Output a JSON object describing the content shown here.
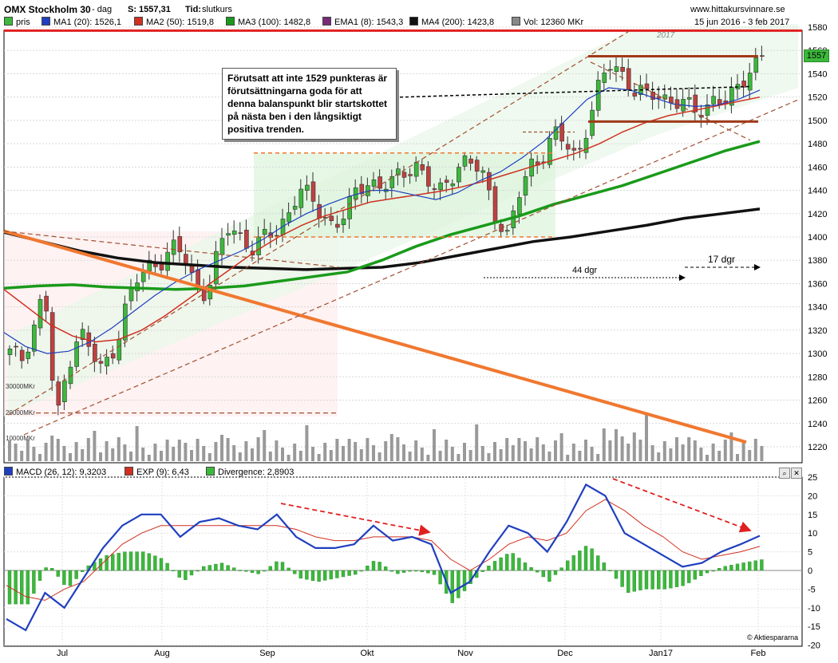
{
  "header": {
    "instrument": "OMX Stockholm 30",
    "period": "- dag",
    "last_label": "S: 1557,31",
    "time_label": "Tid:",
    "time_value": "slutkurs",
    "site": "www.hittakursvinnare.se",
    "date_range": "15 jun 2016 - 3 feb 2017",
    "year_label": "2017",
    "watermark": "© Aktiespararna"
  },
  "legend": [
    {
      "label": "pris",
      "color": "#3cb83c"
    },
    {
      "label": "MA1 (20): 1526,1",
      "color": "#1f3fbf"
    },
    {
      "label": "MA2 (50): 1519,8",
      "color": "#d03020"
    },
    {
      "label": "MA3 (100): 1482,8",
      "color": "#1a9a1a"
    },
    {
      "label": "EMA1 (8): 1543,3",
      "color": "#7a2a7a"
    },
    {
      "label": "MA4 (200): 1423,8",
      "color": "#000000"
    },
    {
      "label": "Vol: 12360 MKr",
      "color": "#888888"
    }
  ],
  "macd_legend": [
    {
      "label": "MACD (26, 12): 9,3203",
      "color": "#1f3fbf"
    },
    {
      "label": "EXP (9): 6,43",
      "color": "#d03020"
    },
    {
      "label": "Divergence: 2,8903",
      "color": "#3cb83c"
    }
  ],
  "annotations": {
    "main_note": "Förutsatt att inte 1529 punkteras är förutsättningarna goda för att denna balanspunkt blir startskottet på nästa ben i den långsiktigt positiva trenden.",
    "span1": "44 dgr",
    "span2": "17 dgr",
    "last_price_tag": "1557"
  },
  "colors": {
    "up": "#3cb83c",
    "down": "#c04040",
    "ma1": "#1f3fbf",
    "ma2": "#d03020",
    "ma3": "#1a9a1a",
    "ema1": "#7a2a7a",
    "ma4": "#111111",
    "resistance": "#e02020",
    "trendline": "#f07830",
    "volume": "#999999"
  },
  "chart_data": [
    {
      "type": "line",
      "title": "OMX Stockholm 30",
      "x_labels": [
        "Jul",
        "Aug",
        "Sep",
        "Okt",
        "Nov",
        "Dec",
        "Jan17",
        "Feb"
      ],
      "y_ticks": [
        1220,
        1240,
        1260,
        1280,
        1300,
        1320,
        1340,
        1360,
        1380,
        1400,
        1420,
        1440,
        1460,
        1480,
        1500,
        1520,
        1540,
        1560,
        1580
      ],
      "ylim": [
        1210,
        1585
      ],
      "grid": true,
      "volume_ticks": [
        "30000MKr",
        "20000MKr",
        "10000MKr"
      ],
      "series": [
        {
          "name": "pris",
          "values": [
            1300,
            1295,
            1322,
            1355,
            1238,
            1290,
            1322,
            1300,
            1285,
            1305,
            1340,
            1362,
            1375,
            1380,
            1390,
            1384,
            1360,
            1352,
            1385,
            1410,
            1400,
            1390,
            1398,
            1405,
            1420,
            1440,
            1432,
            1420,
            1410,
            1418,
            1440,
            1450,
            1442,
            1446,
            1455,
            1465,
            1448,
            1435,
            1452,
            1465,
            1462,
            1450,
            1420,
            1400,
            1435,
            1462,
            1470,
            1488,
            1480,
            1468,
            1500,
            1530,
            1550,
            1540,
            1525,
            1520,
            1523,
            1518,
            1515,
            1508,
            1510,
            1522,
            1512,
            1530,
            1545,
            1557
          ]
        },
        {
          "name": "MA1 (20)",
          "values": [
            1318,
            1306,
            1300,
            1302,
            1310,
            1322,
            1336,
            1350,
            1362,
            1372,
            1380,
            1388,
            1398,
            1410,
            1420,
            1428,
            1435,
            1440,
            1440,
            1436,
            1432,
            1438,
            1448,
            1456,
            1468,
            1482,
            1500,
            1518,
            1528,
            1526,
            1520,
            1514,
            1512,
            1513,
            1518,
            1526
          ]
        },
        {
          "name": "MA2 (50)",
          "values": [
            1355,
            1340,
            1325,
            1315,
            1310,
            1312,
            1320,
            1332,
            1346,
            1360,
            1374,
            1388,
            1400,
            1410,
            1418,
            1424,
            1430,
            1433,
            1436,
            1439,
            1443,
            1448,
            1454,
            1460,
            1466,
            1472,
            1480,
            1490,
            1498,
            1504,
            1508,
            1512,
            1516,
            1520
          ]
        },
        {
          "name": "MA3 (100)",
          "values": [
            1356,
            1358,
            1359,
            1357,
            1356,
            1355,
            1356,
            1358,
            1362,
            1366,
            1370,
            1380,
            1392,
            1402,
            1410,
            1418,
            1428,
            1436,
            1444,
            1454,
            1464,
            1474,
            1482
          ]
        },
        {
          "name": "MA4 (200)",
          "values": [
            1404,
            1396,
            1388,
            1382,
            1378,
            1376,
            1374,
            1373,
            1372,
            1373,
            1374,
            1378,
            1384,
            1390,
            1396,
            1400,
            1405,
            1410,
            1416,
            1420,
            1424
          ]
        }
      ],
      "levels": {
        "resistance": 1577,
        "box_top": 1555,
        "box_bottom": 1499,
        "range_top": 1472,
        "range_bottom": 1400,
        "balance": 1529
      }
    },
    {
      "type": "line",
      "title": "MACD (26, 12)",
      "y_ticks": [
        -20,
        -15,
        -10,
        -5,
        0,
        5,
        10,
        15,
        20,
        25
      ],
      "ylim": [
        -21,
        26
      ],
      "series": [
        {
          "name": "MACD (26, 12)",
          "values": [
            -13,
            -16,
            -6,
            -10,
            -2,
            6,
            12,
            15,
            15,
            9,
            13,
            14,
            12,
            11,
            15,
            9,
            6,
            6,
            7,
            12,
            8,
            9,
            7,
            -6,
            -3,
            5,
            12,
            10,
            5,
            13,
            23,
            20,
            10,
            7,
            4,
            1,
            2,
            5,
            7,
            9.3
          ]
        },
        {
          "name": "EXP (9)",
          "values": [
            -4,
            -7,
            -8,
            -5,
            -3,
            2,
            7,
            10,
            12,
            12,
            12,
            12,
            12,
            12,
            12,
            11,
            9,
            8,
            8,
            9,
            9,
            9,
            8,
            3,
            0,
            3,
            7,
            9,
            8,
            10,
            16,
            19,
            16,
            12,
            9,
            5,
            3,
            4,
            5,
            6.43
          ]
        },
        {
          "name": "Divergence",
          "values": [
            -9,
            -9,
            2,
            -5,
            1,
            4,
            5,
            5,
            3,
            -3,
            1,
            2,
            0,
            -1,
            3,
            -2,
            -3,
            -2,
            -1,
            3,
            -1,
            0,
            -1,
            -9,
            -3,
            2,
            5,
            1,
            -3,
            3,
            7,
            1,
            -6,
            -5,
            -5,
            -4,
            -1,
            1,
            2,
            2.89
          ]
        }
      ]
    }
  ]
}
